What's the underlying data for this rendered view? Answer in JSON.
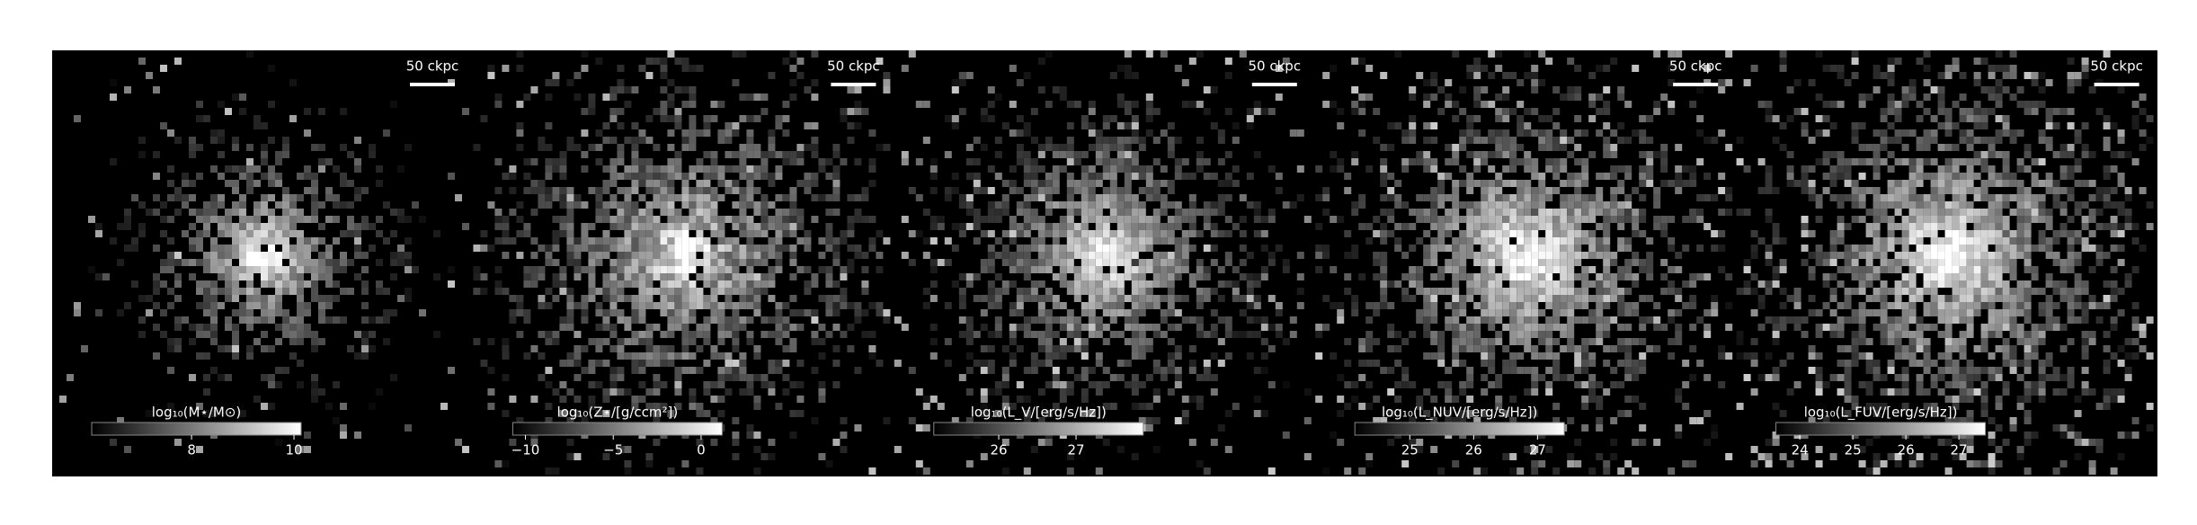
{
  "chart_data": [
    {
      "type": "image",
      "colorbar_label": "log₁₀(M⋆/M⊙)",
      "clim": [
        6.05,
        10.14
      ],
      "cticks": [
        8,
        10
      ],
      "scale_label": "50 ckpc"
    },
    {
      "type": "image",
      "colorbar_label": "log₁₀(Z⋆/[g/ccm²])",
      "clim": [
        -10.72,
        1.2
      ],
      "cticks": [
        {
          "value": -10,
          "label": "−10"
        },
        {
          "value": -5,
          "label": "−5"
        },
        0
      ],
      "scale_label": "50 ckpc"
    },
    {
      "type": "image",
      "colorbar_label": "log₁₀(L_V/[erg/s/Hz])",
      "clim": [
        25.16,
        27.87
      ],
      "cticks": [
        26,
        27
      ],
      "scale_label": "50 ckpc"
    },
    {
      "type": "image",
      "colorbar_label": "log₁₀(L_NUV/[erg/s/Hz])",
      "clim": [
        24.14,
        27.42
      ],
      "cticks": [
        25,
        26,
        27
      ],
      "scale_label": "50 ckpc"
    },
    {
      "type": "image",
      "colorbar_label": "log₁₀(L_FUV/[erg/s/Hz])",
      "clim": [
        23.55,
        27.5
      ],
      "cticks": [
        24,
        25,
        26,
        27
      ],
      "scale_label": "50 ckpc"
    }
  ]
}
